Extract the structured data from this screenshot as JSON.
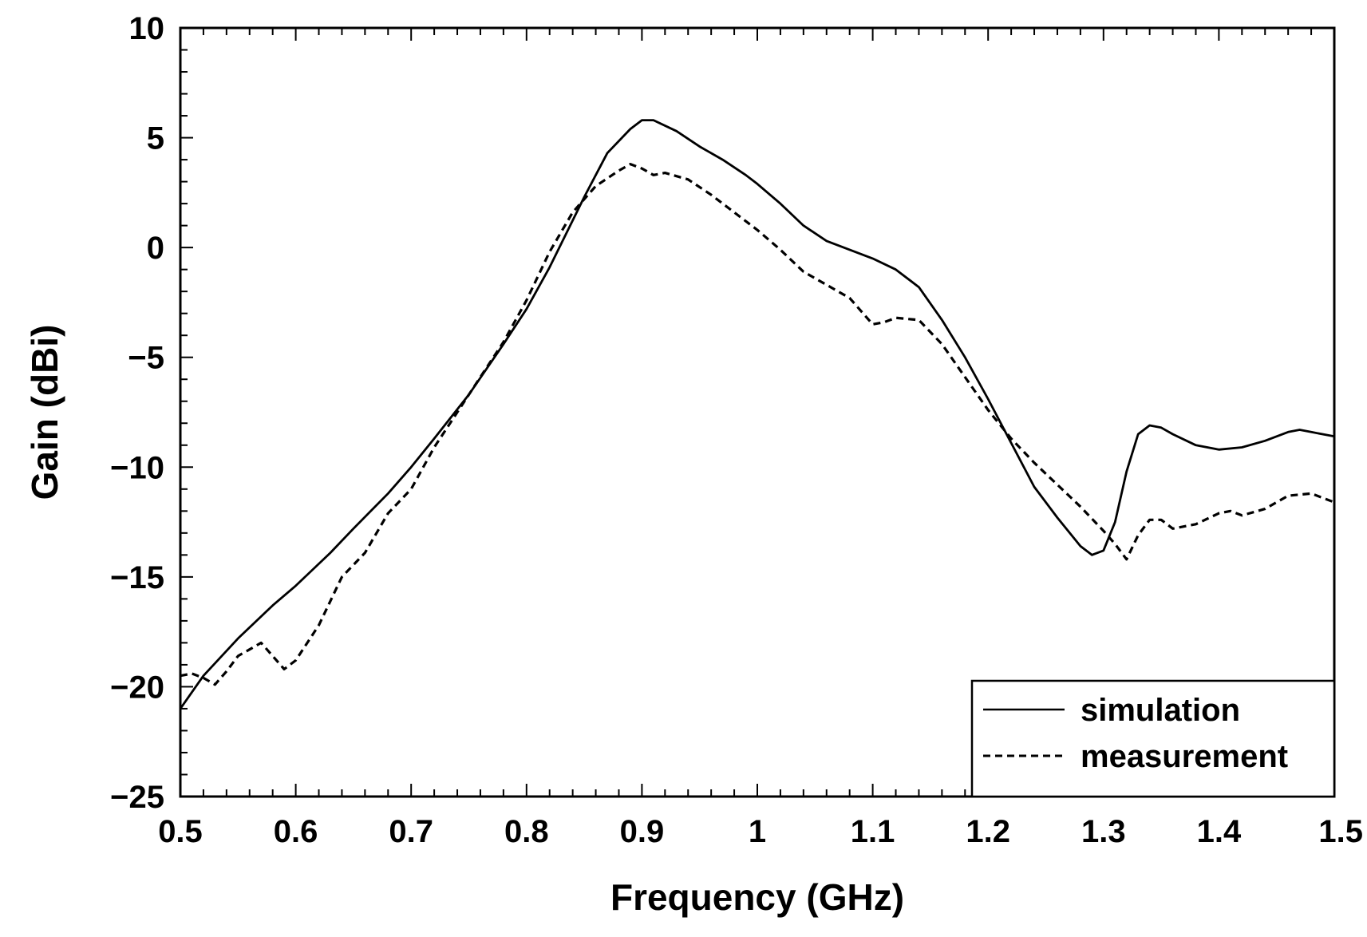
{
  "chart_data": {
    "type": "line",
    "xlabel": "Frequency (GHz)",
    "ylabel": "Gain (dBi)",
    "xlim": [
      0.5,
      1.5
    ],
    "ylim": [
      -25,
      10
    ],
    "xticks": [
      0.5,
      0.6,
      0.7,
      0.8,
      0.9,
      1.0,
      1.1,
      1.2,
      1.3,
      1.4,
      1.5
    ],
    "xtick_labels": [
      "0.5",
      "0.6",
      "0.7",
      "0.8",
      "0.9",
      "1",
      "1.1",
      "1.2",
      "1.3",
      "1.4",
      "1.5"
    ],
    "yticks": [
      -25,
      -20,
      -15,
      -10,
      -5,
      0,
      5,
      10
    ],
    "ytick_labels": [
      "−25",
      "−20",
      "−15",
      "−10",
      "−5",
      "0",
      "5",
      "10"
    ],
    "grid": false,
    "legend_position": "bottom-right",
    "series": [
      {
        "name": "simulation",
        "style": "solid",
        "x": [
          0.5,
          0.52,
          0.55,
          0.58,
          0.6,
          0.63,
          0.65,
          0.68,
          0.7,
          0.72,
          0.75,
          0.78,
          0.8,
          0.82,
          0.85,
          0.87,
          0.89,
          0.9,
          0.91,
          0.93,
          0.95,
          0.97,
          0.99,
          1.0,
          1.02,
          1.04,
          1.06,
          1.08,
          1.1,
          1.12,
          1.14,
          1.16,
          1.18,
          1.2,
          1.22,
          1.24,
          1.26,
          1.28,
          1.29,
          1.3,
          1.31,
          1.32,
          1.33,
          1.34,
          1.35,
          1.36,
          1.38,
          1.4,
          1.42,
          1.44,
          1.46,
          1.47,
          1.48,
          1.5
        ],
        "y": [
          -21.0,
          -19.5,
          -17.8,
          -16.3,
          -15.4,
          -13.9,
          -12.8,
          -11.2,
          -10.0,
          -8.7,
          -6.7,
          -4.4,
          -2.8,
          -0.9,
          2.3,
          4.3,
          5.4,
          5.8,
          5.8,
          5.3,
          4.6,
          4.0,
          3.3,
          2.9,
          2.0,
          1.0,
          0.3,
          -0.1,
          -0.5,
          -1.0,
          -1.8,
          -3.3,
          -5.0,
          -6.9,
          -8.9,
          -10.9,
          -12.3,
          -13.6,
          -14.0,
          -13.8,
          -12.5,
          -10.2,
          -8.5,
          -8.1,
          -8.2,
          -8.5,
          -9.0,
          -9.2,
          -9.1,
          -8.8,
          -8.4,
          -8.3,
          -8.4,
          -8.6
        ]
      },
      {
        "name": "measurement",
        "style": "dashed",
        "x": [
          0.5,
          0.51,
          0.52,
          0.53,
          0.54,
          0.55,
          0.56,
          0.57,
          0.58,
          0.59,
          0.6,
          0.62,
          0.64,
          0.66,
          0.68,
          0.7,
          0.72,
          0.75,
          0.78,
          0.8,
          0.82,
          0.84,
          0.86,
          0.88,
          0.89,
          0.9,
          0.91,
          0.92,
          0.94,
          0.96,
          0.98,
          1.0,
          1.02,
          1.04,
          1.06,
          1.08,
          1.1,
          1.11,
          1.12,
          1.14,
          1.16,
          1.18,
          1.2,
          1.22,
          1.24,
          1.26,
          1.28,
          1.3,
          1.31,
          1.32,
          1.33,
          1.34,
          1.35,
          1.36,
          1.38,
          1.4,
          1.41,
          1.42,
          1.44,
          1.46,
          1.48,
          1.49,
          1.5
        ],
        "y": [
          -19.5,
          -19.4,
          -19.6,
          -19.9,
          -19.3,
          -18.6,
          -18.3,
          -18.0,
          -18.6,
          -19.2,
          -18.8,
          -17.2,
          -15.0,
          -13.9,
          -12.1,
          -11.0,
          -9.1,
          -6.7,
          -4.3,
          -2.4,
          -0.2,
          1.6,
          2.8,
          3.5,
          3.8,
          3.6,
          3.3,
          3.4,
          3.1,
          2.4,
          1.6,
          0.8,
          -0.1,
          -1.1,
          -1.7,
          -2.3,
          -3.5,
          -3.4,
          -3.2,
          -3.3,
          -4.4,
          -5.9,
          -7.4,
          -8.7,
          -9.8,
          -10.8,
          -11.8,
          -12.9,
          -13.5,
          -14.2,
          -13.1,
          -12.4,
          -12.4,
          -12.8,
          -12.6,
          -12.1,
          -12.0,
          -12.2,
          -11.9,
          -11.3,
          -11.2,
          -11.4,
          -11.6
        ]
      }
    ]
  }
}
